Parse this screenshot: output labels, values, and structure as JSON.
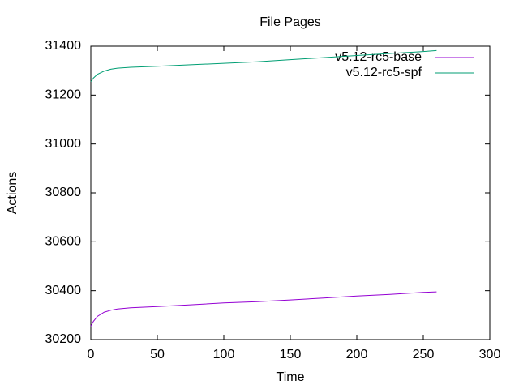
{
  "chart_data": {
    "type": "line",
    "title": "File Pages",
    "x_label": "Time",
    "y_label": "Actions",
    "x": [
      0,
      2,
      5,
      10,
      15,
      20,
      30,
      50,
      75,
      100,
      125,
      150,
      175,
      200,
      225,
      250,
      260
    ],
    "series": [
      {
        "name": "v5.12-rc5-base",
        "color": "#9400d3",
        "values": [
          30255,
          30275,
          30295,
          30312,
          30320,
          30325,
          30330,
          30335,
          30342,
          30350,
          30355,
          30362,
          30370,
          30378,
          30385,
          30393,
          30395
        ]
      },
      {
        "name": "v5.12-rc5-spf",
        "color": "#009e73",
        "values": [
          31255,
          31270,
          31285,
          31298,
          31306,
          31310,
          31314,
          31318,
          31324,
          31330,
          31336,
          31345,
          31353,
          31362,
          31370,
          31378,
          31382
        ]
      }
    ],
    "xlim": [
      0,
      300
    ],
    "xticks": [
      0,
      50,
      100,
      150,
      200,
      250,
      300
    ],
    "ylim": [
      30200,
      31400
    ],
    "yticks": [
      30200,
      30400,
      30600,
      30800,
      31000,
      31200,
      31400
    ],
    "grid": false,
    "legend": "top-right"
  }
}
